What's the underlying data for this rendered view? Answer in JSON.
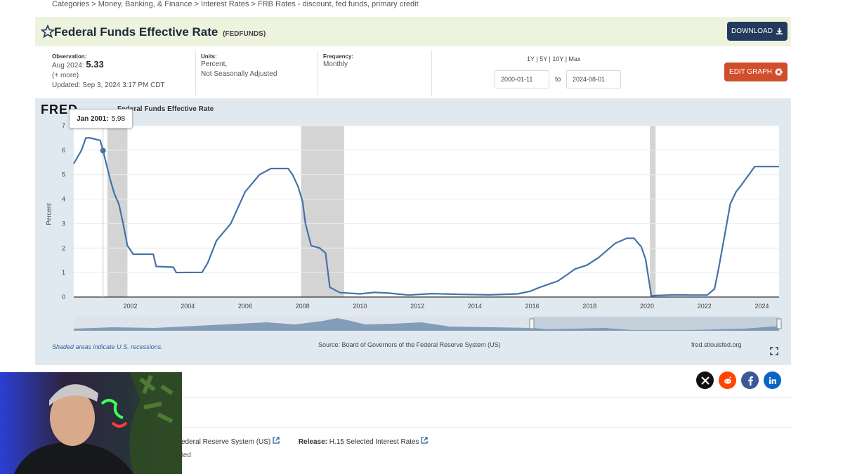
{
  "breadcrumb": "Categories > Money, Banking, & Finance > Interest Rates > FRB Rates - discount, fed funds, primary credit",
  "series": {
    "title": "Federal Funds Effective Rate",
    "id": "(FEDFUNDS)",
    "download_label": "DOWNLOAD"
  },
  "observation": {
    "label": "Observation:",
    "period": "Aug 2024:",
    "value": "5.33",
    "more": "(+ more)",
    "updated": "Updated: Sep 3, 2024 3:17 PM CDT"
  },
  "units": {
    "label": "Units:",
    "line1": "Percent,",
    "line2": "Not Seasonally Adjusted"
  },
  "frequency": {
    "label": "Frequency:",
    "value": "Monthly"
  },
  "date_range": {
    "presets": "1Y | 5Y | 10Y | Max",
    "start": "2000-01-11",
    "to": "to",
    "end": "2024-08-01"
  },
  "edit_graph_label": "EDIT GRAPH",
  "graph": {
    "logo": "FRED",
    "title": "Federal Funds Effective Rate",
    "tooltip_period": "Jan 2001:",
    "tooltip_value": "5.98",
    "recession_note": "Shaded areas indicate U.S. recessions.",
    "source": "Source: Board of Governors of the Federal Reserve System (US)",
    "url": "fred.stlouisfed.org"
  },
  "chart_data": {
    "type": "line",
    "title": "Federal Funds Effective Rate",
    "ylabel": "Percent",
    "xlabel": "",
    "ylim": [
      0,
      7
    ],
    "y_ticks": [
      0,
      1,
      2,
      3,
      4,
      5,
      6,
      7
    ],
    "x_ticks": [
      "2002",
      "2004",
      "2006",
      "2008",
      "2010",
      "2012",
      "2014",
      "2016",
      "2018",
      "2020",
      "2022",
      "2024"
    ],
    "xlim": [
      2000.03,
      2024.6
    ],
    "recessions": [
      [
        2001.2,
        2001.9
      ],
      [
        2007.95,
        2009.45
      ],
      [
        2020.1,
        2020.3
      ]
    ],
    "series": [
      {
        "x": [
          2000.03,
          2000.3,
          2000.45,
          2000.6,
          2000.95,
          2001.05,
          2001.15,
          2001.3,
          2001.45,
          2001.6,
          2001.75,
          2001.9,
          2002.1,
          2002.8,
          2002.9,
          2003.5,
          2003.6,
          2004.5,
          2004.7,
          2005.0,
          2005.5,
          2006.0,
          2006.5,
          2006.9,
          2007.5,
          2007.65,
          2007.85,
          2008.0,
          2008.1,
          2008.3,
          2008.6,
          2008.8,
          2008.95,
          2009.3,
          2010.0,
          2010.5,
          2011.0,
          2011.7,
          2012.5,
          2013.5,
          2014.5,
          2015.5,
          2015.95,
          2016.2,
          2016.9,
          2017.2,
          2017.5,
          2017.9,
          2018.3,
          2018.6,
          2018.9,
          2019.3,
          2019.55,
          2019.8,
          2019.95,
          2020.15,
          2020.3,
          2021.0,
          2021.5,
          2022.1,
          2022.35,
          2022.5,
          2022.7,
          2022.9,
          2023.1,
          2023.3,
          2023.6,
          2023.75,
          2024.6
        ],
        "values": [
          5.45,
          6.0,
          6.5,
          6.5,
          6.4,
          5.98,
          5.5,
          4.8,
          4.2,
          3.8,
          3.0,
          2.1,
          1.75,
          1.75,
          1.25,
          1.22,
          1.0,
          1.01,
          1.4,
          2.3,
          3.0,
          4.3,
          5.0,
          5.25,
          5.25,
          5.0,
          4.5,
          3.9,
          3.0,
          2.1,
          2.0,
          1.8,
          0.4,
          0.18,
          0.13,
          0.19,
          0.16,
          0.08,
          0.14,
          0.11,
          0.09,
          0.13,
          0.24,
          0.37,
          0.66,
          0.9,
          1.15,
          1.3,
          1.6,
          1.9,
          2.2,
          2.4,
          2.4,
          2.05,
          1.55,
          0.05,
          0.06,
          0.09,
          0.08,
          0.08,
          0.33,
          1.2,
          2.5,
          3.8,
          4.3,
          4.6,
          5.08,
          5.33,
          5.33
        ]
      }
    ]
  },
  "bottom": {
    "source_text": "ederal Reserve System (US)",
    "release_label": "Release:",
    "release_value": "H.15 Selected Interest Rates",
    "line2": "ted"
  },
  "colors": {
    "line": "#4572a7",
    "recession": "#d4d4d4",
    "plot_bg": "#ffffff",
    "panel": "#e1e9f0"
  },
  "social": [
    "x-icon",
    "reddit-icon",
    "facebook-icon",
    "linkedin-icon"
  ]
}
